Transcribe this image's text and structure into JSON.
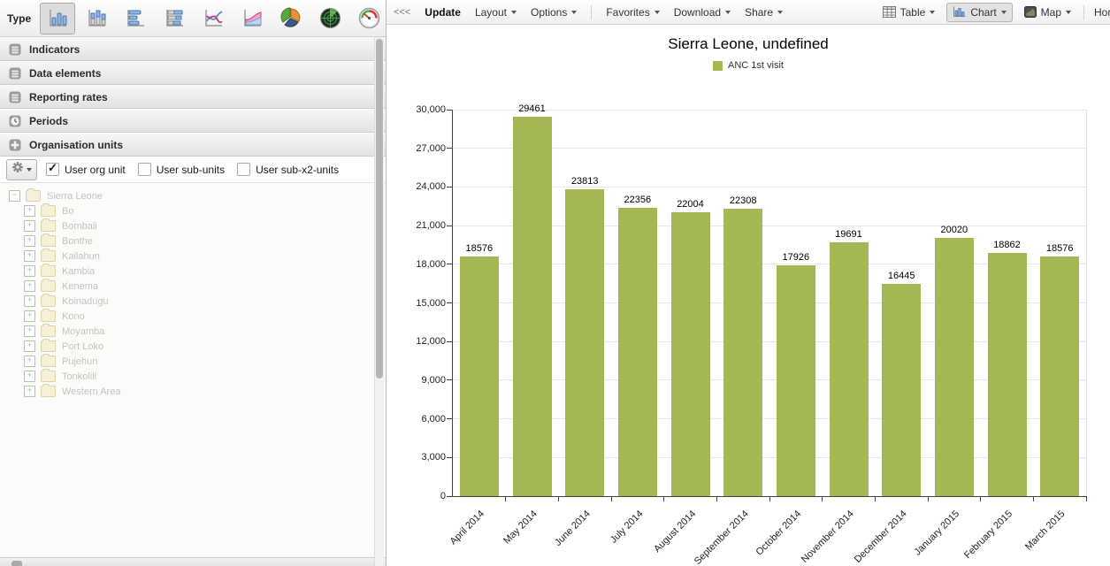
{
  "app": {
    "accent_green": "#a3b854"
  },
  "sidebar": {
    "type_label": "Type",
    "chart_types": [
      {
        "name": "column",
        "selected": true
      },
      {
        "name": "stacked-column",
        "selected": false
      },
      {
        "name": "bar",
        "selected": false
      },
      {
        "name": "stacked-bar",
        "selected": false
      },
      {
        "name": "line",
        "selected": false
      },
      {
        "name": "area",
        "selected": false
      },
      {
        "name": "pie",
        "selected": false
      },
      {
        "name": "radar",
        "selected": false
      },
      {
        "name": "gauge",
        "selected": false
      }
    ],
    "accordion_sections": [
      {
        "label": "Indicators",
        "icon": "data-icon"
      },
      {
        "label": "Data elements",
        "icon": "data-icon"
      },
      {
        "label": "Reporting rates",
        "icon": "data-icon"
      },
      {
        "label": "Periods",
        "icon": "clock-icon"
      },
      {
        "label": "Organisation units",
        "icon": "plus-icon"
      }
    ],
    "orgunit_toolbar": {
      "checkboxes": [
        {
          "label": "User org unit",
          "checked": true
        },
        {
          "label": "User sub-units",
          "checked": false
        },
        {
          "label": "User sub-x2-units",
          "checked": false
        }
      ]
    },
    "tree": {
      "root": "Sierra Leone",
      "children": [
        "Bo",
        "Bombali",
        "Bonthe",
        "Kailahun",
        "Kambia",
        "Kenema",
        "Koinadugu",
        "Kono",
        "Moyamba",
        "Port Loko",
        "Pujehun",
        "Tonkolili",
        "Western Area"
      ]
    }
  },
  "toolbar": {
    "collapse_label": "<<<",
    "update_label": "Update",
    "left_menus": [
      "Layout",
      "Options"
    ],
    "left_menus2": [
      "Favorites",
      "Download",
      "Share"
    ],
    "right_buttons": [
      {
        "label": "Table",
        "icon": "table-icon",
        "selected": false
      },
      {
        "label": "Chart",
        "icon": "chart-icon",
        "selected": true
      },
      {
        "label": "Map",
        "icon": "map-icon",
        "selected": false
      }
    ],
    "home_label": "Home"
  },
  "chart_data": {
    "type": "bar",
    "title": "Sierra Leone, undefined",
    "legend": [
      {
        "label": "ANC 1st visit",
        "color": "#a3b854"
      }
    ],
    "legend_position": "top",
    "categories": [
      "April 2014",
      "May 2014",
      "June 2014",
      "July 2014",
      "August 2014",
      "September 2014",
      "October 2014",
      "November 2014",
      "December 2014",
      "January 2015",
      "February 2015",
      "March 2015"
    ],
    "values": [
      18576,
      29461,
      23813,
      22356,
      22004,
      22308,
      17926,
      19691,
      16445,
      20020,
      18862,
      18576
    ],
    "xlabel": "",
    "ylabel": "",
    "ylim": [
      0,
      30000
    ],
    "ytick_step": 3000,
    "grid": true
  }
}
